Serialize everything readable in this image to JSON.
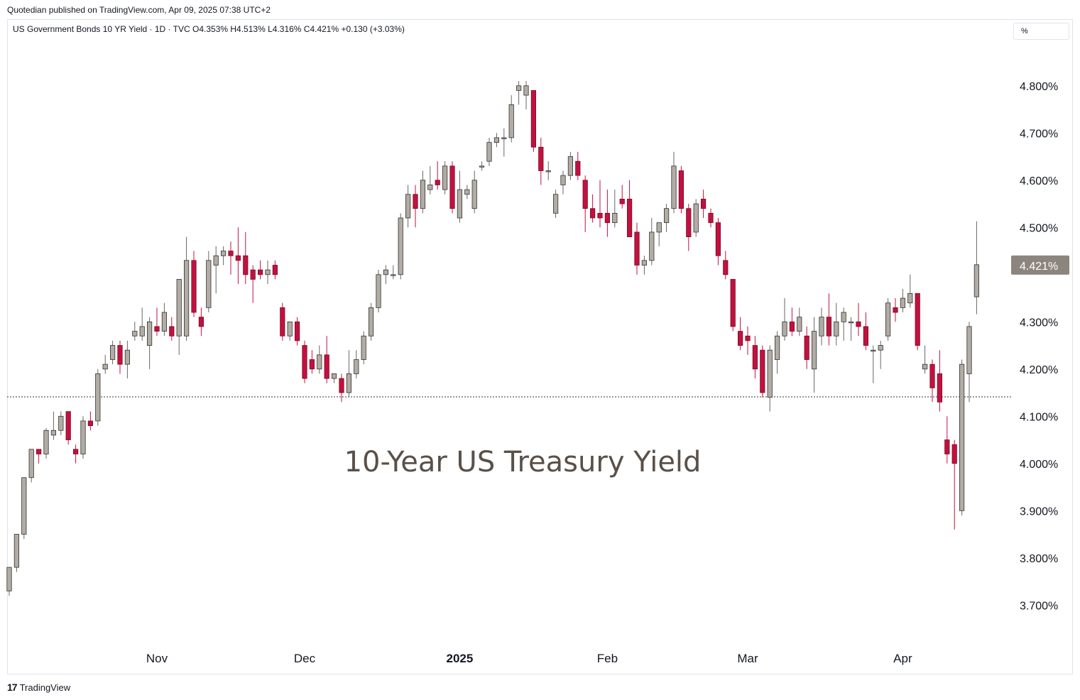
{
  "header": {
    "published": "Quotedian published on TradingView.com, Apr 09, 2025 07:38 UTC+2",
    "symbol": "US Government Bonds 10 YR Yield · 1D · TVC",
    "ohlc": "O4.353% H4.513% L4.316% C4.421% +0.130 (+3.03%)",
    "unit": "%"
  },
  "footer": {
    "brand": "TradingView",
    "logo_icon": "tradingview-logo-icon"
  },
  "colors": {
    "up": "#b2aca4",
    "down": "#c2113f",
    "wick": "#555555",
    "price_tag": "#8c857e",
    "annotation": "#5a5048"
  },
  "chart_data": {
    "type": "candlestick",
    "annotation": "10-Year US Treasury Yield",
    "y_ticks": [
      {
        "v": 4.8,
        "label": "4.800%"
      },
      {
        "v": 4.7,
        "label": "4.700%"
      },
      {
        "v": 4.6,
        "label": "4.600%"
      },
      {
        "v": 4.5,
        "label": "4.500%"
      },
      {
        "v": 4.3,
        "label": "4.300%"
      },
      {
        "v": 4.2,
        "label": "4.200%"
      },
      {
        "v": 4.1,
        "label": "4.100%"
      },
      {
        "v": 4.0,
        "label": "4.000%"
      },
      {
        "v": 3.9,
        "label": "3.900%"
      },
      {
        "v": 3.8,
        "label": "3.800%"
      },
      {
        "v": 3.7,
        "label": "3.700%"
      }
    ],
    "last_price": {
      "v": 4.421,
      "label": "4.421%"
    },
    "reference_line": 4.141,
    "x_ticks": [
      {
        "i": 20,
        "label": "Nov"
      },
      {
        "i": 40,
        "label": "Dec"
      },
      {
        "i": 61,
        "label": "2025",
        "bold": true
      },
      {
        "i": 81,
        "label": "Feb"
      },
      {
        "i": 100,
        "label": "Mar"
      },
      {
        "i": 121,
        "label": "Apr"
      }
    ],
    "candles": [
      [
        3.73,
        3.78,
        3.72,
        3.78
      ],
      [
        3.78,
        3.85,
        3.77,
        3.85
      ],
      [
        3.85,
        3.97,
        3.84,
        3.97
      ],
      [
        3.97,
        4.03,
        3.96,
        4.03
      ],
      [
        4.03,
        4.02,
        4.0,
        4.03
      ],
      [
        4.02,
        4.07,
        4.01,
        4.075
      ],
      [
        4.06,
        4.07,
        4.05,
        4.11
      ],
      [
        4.07,
        4.1,
        4.06,
        4.11
      ],
      [
        4.11,
        4.05,
        4.04,
        4.11
      ],
      [
        4.03,
        4.02,
        4.0,
        4.04
      ],
      [
        4.02,
        4.09,
        4.01,
        4.1
      ],
      [
        4.09,
        4.08,
        4.07,
        4.11
      ],
      [
        4.09,
        4.19,
        4.08,
        4.2
      ],
      [
        4.2,
        4.21,
        4.19,
        4.23
      ],
      [
        4.22,
        4.25,
        4.21,
        4.26
      ],
      [
        4.25,
        4.21,
        4.19,
        4.26
      ],
      [
        4.21,
        4.24,
        4.18,
        4.26
      ],
      [
        4.27,
        4.28,
        4.26,
        4.3
      ],
      [
        4.27,
        4.29,
        4.26,
        4.33
      ],
      [
        4.25,
        4.3,
        4.2,
        4.31
      ],
      [
        4.29,
        4.28,
        4.27,
        4.33
      ],
      [
        4.28,
        4.32,
        4.27,
        4.34
      ],
      [
        4.29,
        4.27,
        4.26,
        4.31
      ],
      [
        4.27,
        4.39,
        4.23,
        4.39
      ],
      [
        4.27,
        4.43,
        4.26,
        4.48
      ],
      [
        4.43,
        4.32,
        4.31,
        4.45
      ],
      [
        4.31,
        4.29,
        4.27,
        4.33
      ],
      [
        4.33,
        4.43,
        4.32,
        4.45
      ],
      [
        4.42,
        4.44,
        4.36,
        4.46
      ],
      [
        4.44,
        4.45,
        4.42,
        4.46
      ],
      [
        4.45,
        4.44,
        4.4,
        4.47
      ],
      [
        4.44,
        4.43,
        4.38,
        4.5
      ],
      [
        4.44,
        4.4,
        4.38,
        4.49
      ],
      [
        4.41,
        4.39,
        4.34,
        4.42
      ],
      [
        4.41,
        4.4,
        4.39,
        4.43
      ],
      [
        4.4,
        4.41,
        4.38,
        4.43
      ],
      [
        4.42,
        4.4,
        4.39,
        4.43
      ],
      [
        4.33,
        4.27,
        4.26,
        4.34
      ],
      [
        4.27,
        4.3,
        4.26,
        4.3
      ],
      [
        4.3,
        4.26,
        4.25,
        4.31
      ],
      [
        4.25,
        4.18,
        4.17,
        4.26
      ],
      [
        4.22,
        4.2,
        4.19,
        4.24
      ],
      [
        4.2,
        4.23,
        4.19,
        4.25
      ],
      [
        4.23,
        4.18,
        4.17,
        4.27
      ],
      [
        4.18,
        4.19,
        4.17,
        4.19
      ],
      [
        4.18,
        4.15,
        4.13,
        4.19
      ],
      [
        4.15,
        4.19,
        4.14,
        4.24
      ],
      [
        4.19,
        4.22,
        4.18,
        4.24
      ],
      [
        4.22,
        4.27,
        4.21,
        4.28
      ],
      [
        4.27,
        4.33,
        4.26,
        4.34
      ],
      [
        4.33,
        4.4,
        4.32,
        4.41
      ],
      [
        4.4,
        4.41,
        4.38,
        4.42
      ],
      [
        4.4,
        4.4,
        4.39,
        4.42
      ],
      [
        4.4,
        4.52,
        4.39,
        4.53
      ],
      [
        4.52,
        4.57,
        4.5,
        4.59
      ],
      [
        4.57,
        4.54,
        4.5,
        4.59
      ],
      [
        4.54,
        4.6,
        4.53,
        4.62
      ],
      [
        4.58,
        4.59,
        4.57,
        4.63
      ],
      [
        4.6,
        4.59,
        4.58,
        4.64
      ],
      [
        4.58,
        4.63,
        4.57,
        4.64
      ],
      [
        4.63,
        4.54,
        4.53,
        4.64
      ],
      [
        4.52,
        4.58,
        4.51,
        4.62
      ],
      [
        4.57,
        4.58,
        4.56,
        4.59
      ],
      [
        4.54,
        4.6,
        4.53,
        4.62
      ],
      [
        4.63,
        4.63,
        4.62,
        4.64
      ],
      [
        4.64,
        4.68,
        4.63,
        4.69
      ],
      [
        4.68,
        4.69,
        4.67,
        4.7
      ],
      [
        4.69,
        4.69,
        4.65,
        4.71
      ],
      [
        4.69,
        4.76,
        4.68,
        4.78
      ],
      [
        4.79,
        4.8,
        4.76,
        4.81
      ],
      [
        4.78,
        4.8,
        4.75,
        4.81
      ],
      [
        4.79,
        4.67,
        4.66,
        4.79
      ],
      [
        4.67,
        4.62,
        4.59,
        4.69
      ],
      [
        4.62,
        4.62,
        4.6,
        4.64
      ],
      [
        4.53,
        4.57,
        4.52,
        4.58
      ],
      [
        4.59,
        4.61,
        4.57,
        4.62
      ],
      [
        4.61,
        4.65,
        4.6,
        4.66
      ],
      [
        4.64,
        4.61,
        4.6,
        4.66
      ],
      [
        4.6,
        4.54,
        4.49,
        4.61
      ],
      [
        4.54,
        4.52,
        4.51,
        4.57
      ],
      [
        4.53,
        4.52,
        4.5,
        4.6
      ],
      [
        4.53,
        4.51,
        4.48,
        4.58
      ],
      [
        4.51,
        4.53,
        4.5,
        4.58
      ],
      [
        4.56,
        4.55,
        4.54,
        4.59
      ],
      [
        4.56,
        4.48,
        4.48,
        4.6
      ],
      [
        4.49,
        4.42,
        4.4,
        4.51
      ],
      [
        4.42,
        4.43,
        4.4,
        4.44
      ],
      [
        4.43,
        4.49,
        4.42,
        4.52
      ],
      [
        4.49,
        4.51,
        4.46,
        4.51
      ],
      [
        4.51,
        4.54,
        4.49,
        4.55
      ],
      [
        4.54,
        4.63,
        4.53,
        4.66
      ],
      [
        4.62,
        4.54,
        4.53,
        4.63
      ],
      [
        4.54,
        4.48,
        4.45,
        4.55
      ],
      [
        4.49,
        4.55,
        4.48,
        4.56
      ],
      [
        4.56,
        4.54,
        4.52,
        4.58
      ],
      [
        4.53,
        4.51,
        4.5,
        4.54
      ],
      [
        4.51,
        4.44,
        4.42,
        4.52
      ],
      [
        4.43,
        4.4,
        4.39,
        4.45
      ],
      [
        4.39,
        4.29,
        4.28,
        4.39
      ],
      [
        4.28,
        4.25,
        4.24,
        4.31
      ],
      [
        4.27,
        4.26,
        4.23,
        4.29
      ],
      [
        4.25,
        4.2,
        4.18,
        4.27
      ],
      [
        4.24,
        4.15,
        4.14,
        4.25
      ],
      [
        4.14,
        4.24,
        4.11,
        4.25
      ],
      [
        4.22,
        4.27,
        4.19,
        4.28
      ],
      [
        4.27,
        4.3,
        4.26,
        4.35
      ],
      [
        4.3,
        4.28,
        4.27,
        4.33
      ],
      [
        4.28,
        4.31,
        4.27,
        4.33
      ],
      [
        4.27,
        4.22,
        4.2,
        4.29
      ],
      [
        4.2,
        4.28,
        4.15,
        4.31
      ],
      [
        4.27,
        4.31,
        4.25,
        4.33
      ],
      [
        4.31,
        4.27,
        4.25,
        4.36
      ],
      [
        4.27,
        4.3,
        4.25,
        4.34
      ],
      [
        4.3,
        4.32,
        4.26,
        4.33
      ],
      [
        4.3,
        4.3,
        4.26,
        4.31
      ],
      [
        4.3,
        4.29,
        4.27,
        4.34
      ],
      [
        4.29,
        4.25,
        4.24,
        4.32
      ],
      [
        4.24,
        4.24,
        4.17,
        4.25
      ],
      [
        4.24,
        4.25,
        4.2,
        4.26
      ],
      [
        4.27,
        4.34,
        4.26,
        4.35
      ],
      [
        4.33,
        4.32,
        4.3,
        4.35
      ],
      [
        4.33,
        4.35,
        4.32,
        4.37
      ],
      [
        4.34,
        4.36,
        4.33,
        4.4
      ],
      [
        4.36,
        4.25,
        4.24,
        4.36
      ],
      [
        4.2,
        4.21,
        4.19,
        4.25
      ],
      [
        4.21,
        4.16,
        4.13,
        4.22
      ],
      [
        4.19,
        4.13,
        4.11,
        4.24
      ],
      [
        4.05,
        4.02,
        4.0,
        4.1
      ],
      [
        4.04,
        4.0,
        3.86,
        4.05
      ],
      [
        3.9,
        4.21,
        3.89,
        4.22
      ],
      [
        4.19,
        4.29,
        4.13,
        4.3
      ],
      [
        4.353,
        4.421,
        4.316,
        4.513
      ]
    ]
  }
}
